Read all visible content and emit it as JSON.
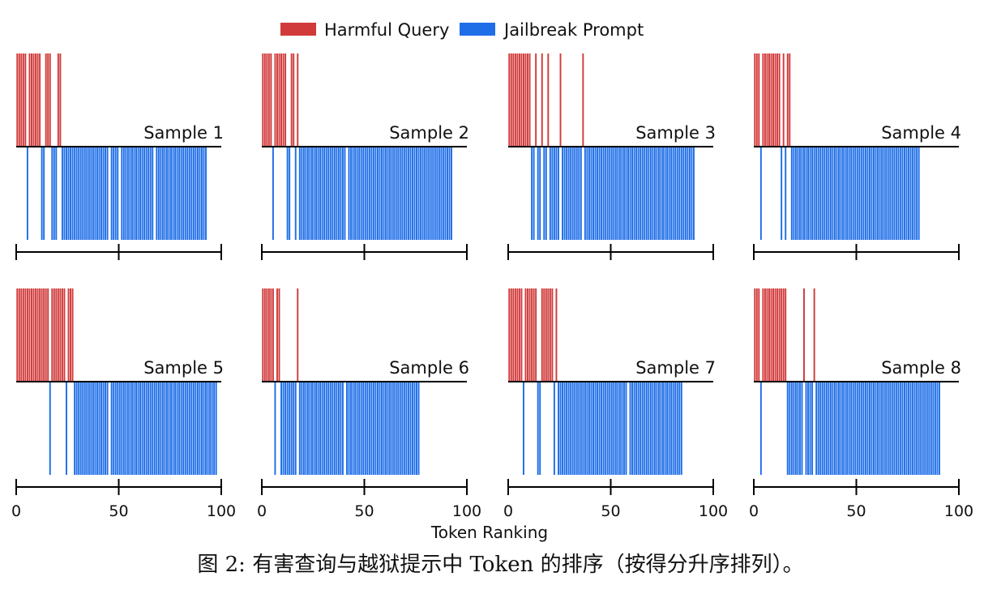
{
  "legend": {
    "harmful_label": "Harmful Query",
    "jailbreak_label": "Jailbreak Prompt"
  },
  "colors": {
    "harmful": "#d13a3a",
    "jailbreak": "#1f6ee8"
  },
  "caption": "图 2: 有害查询与越狱提示中 Token 的排序（按得分升序排列）。",
  "chart_data": {
    "type": "bar",
    "xlabel": "Token Ranking",
    "xlim": [
      0,
      100
    ],
    "xticks": [
      0,
      50,
      100
    ],
    "series_names": [
      "Harmful Query",
      "Jailbreak Prompt"
    ],
    "panels": [
      {
        "title": "Sample 1",
        "harmful_ranks": [
          1,
          2,
          3,
          4,
          5,
          7,
          8,
          9,
          10,
          11,
          12,
          15,
          16,
          17,
          21,
          22
        ],
        "jailbreak_ranks": [
          6,
          13,
          14,
          18,
          19,
          20,
          23,
          24,
          25,
          26,
          27,
          28,
          29,
          30,
          31,
          32,
          33,
          34,
          35,
          36,
          37,
          38,
          39,
          40,
          41,
          42,
          43,
          44,
          45,
          47,
          48,
          49,
          50,
          52,
          53,
          54,
          55,
          56,
          57,
          58,
          59,
          60,
          61,
          62,
          63,
          64,
          65,
          66,
          67,
          69,
          70,
          71,
          72,
          73,
          74,
          75,
          76,
          77,
          78,
          79,
          80,
          81,
          82,
          83,
          84,
          85,
          86,
          87,
          88,
          89,
          90,
          91,
          92,
          93
        ]
      },
      {
        "title": "Sample 2",
        "harmful_ranks": [
          1,
          2,
          3,
          4,
          5,
          7,
          8,
          9,
          10,
          11,
          12,
          15,
          16,
          18
        ],
        "jailbreak_ranks": [
          6,
          13,
          14,
          17,
          19,
          20,
          21,
          22,
          23,
          24,
          25,
          26,
          27,
          28,
          29,
          30,
          31,
          32,
          33,
          34,
          35,
          36,
          37,
          38,
          39,
          40,
          41,
          43,
          44,
          45,
          46,
          47,
          48,
          49,
          50,
          51,
          52,
          53,
          54,
          55,
          56,
          57,
          58,
          59,
          60,
          61,
          62,
          63,
          64,
          65,
          66,
          67,
          68,
          69,
          70,
          71,
          72,
          73,
          74,
          75,
          76,
          77,
          78,
          79,
          80,
          81,
          82,
          83,
          84,
          85,
          86,
          87,
          88,
          89,
          90,
          91,
          92,
          93
        ]
      },
      {
        "title": "Sample 3",
        "harmful_ranks": [
          1,
          2,
          3,
          4,
          5,
          6,
          7,
          8,
          9,
          10,
          11,
          14,
          17,
          20,
          26,
          37
        ],
        "jailbreak_ranks": [
          12,
          13,
          15,
          16,
          18,
          19,
          21,
          22,
          23,
          24,
          25,
          27,
          28,
          29,
          30,
          31,
          32,
          33,
          34,
          35,
          36,
          38,
          39,
          40,
          41,
          42,
          43,
          44,
          45,
          46,
          47,
          48,
          49,
          50,
          51,
          52,
          53,
          54,
          55,
          56,
          57,
          58,
          59,
          60,
          61,
          62,
          63,
          64,
          65,
          66,
          67,
          68,
          69,
          70,
          71,
          72,
          73,
          74,
          75,
          76,
          77,
          78,
          79,
          80,
          81,
          82,
          83,
          84,
          85,
          86,
          87,
          88,
          89,
          90,
          91
        ]
      },
      {
        "title": "Sample 4",
        "harmful_ranks": [
          1,
          2,
          3,
          5,
          6,
          7,
          8,
          9,
          10,
          11,
          12,
          13,
          15,
          17,
          18
        ],
        "jailbreak_ranks": [
          4,
          14,
          16,
          19,
          20,
          21,
          22,
          23,
          24,
          25,
          26,
          27,
          28,
          29,
          30,
          31,
          32,
          33,
          34,
          35,
          36,
          37,
          38,
          39,
          40,
          41,
          42,
          43,
          44,
          45,
          46,
          47,
          48,
          49,
          50,
          51,
          52,
          53,
          54,
          55,
          56,
          57,
          58,
          59,
          60,
          61,
          62,
          63,
          64,
          65,
          66,
          67,
          68,
          69,
          70,
          71,
          72,
          73,
          74,
          75,
          76,
          77,
          78,
          79,
          80,
          81
        ]
      },
      {
        "title": "Sample 5",
        "harmful_ranks": [
          1,
          2,
          3,
          4,
          5,
          6,
          7,
          8,
          9,
          10,
          11,
          12,
          13,
          14,
          15,
          16,
          18,
          19,
          20,
          21,
          22,
          23,
          24,
          26,
          27,
          28
        ],
        "jailbreak_ranks": [
          17,
          25,
          29,
          30,
          31,
          32,
          33,
          34,
          35,
          36,
          37,
          38,
          39,
          40,
          41,
          42,
          43,
          44,
          45,
          47,
          48,
          49,
          50,
          51,
          52,
          53,
          54,
          55,
          56,
          57,
          58,
          59,
          60,
          61,
          62,
          63,
          64,
          65,
          66,
          67,
          68,
          69,
          70,
          71,
          72,
          73,
          74,
          75,
          76,
          77,
          78,
          79,
          80,
          81,
          82,
          83,
          84,
          85,
          86,
          87,
          88,
          89,
          90,
          91,
          92,
          93,
          94,
          95,
          96,
          97,
          98
        ]
      },
      {
        "title": "Sample 6",
        "harmful_ranks": [
          1,
          2,
          3,
          4,
          5,
          6,
          8,
          9,
          18
        ],
        "jailbreak_ranks": [
          7,
          10,
          11,
          12,
          13,
          14,
          15,
          16,
          17,
          19,
          20,
          21,
          22,
          23,
          24,
          25,
          26,
          27,
          28,
          29,
          30,
          31,
          32,
          33,
          34,
          35,
          36,
          37,
          38,
          39,
          40,
          42,
          43,
          44,
          45,
          46,
          47,
          48,
          49,
          50,
          51,
          52,
          53,
          54,
          55,
          56,
          57,
          58,
          59,
          60,
          61,
          62,
          63,
          64,
          65,
          66,
          67,
          68,
          69,
          70,
          71,
          72,
          73,
          74,
          75,
          76,
          77
        ]
      },
      {
        "title": "Sample 7",
        "harmful_ranks": [
          1,
          2,
          3,
          4,
          5,
          6,
          7,
          9,
          10,
          11,
          12,
          13,
          14,
          17,
          18,
          19,
          20,
          21,
          22,
          24
        ],
        "jailbreak_ranks": [
          8,
          15,
          16,
          23,
          25,
          26,
          27,
          28,
          29,
          30,
          31,
          32,
          33,
          34,
          35,
          36,
          37,
          38,
          39,
          40,
          41,
          42,
          43,
          44,
          45,
          46,
          47,
          48,
          49,
          50,
          51,
          52,
          53,
          54,
          55,
          56,
          57,
          58,
          60,
          61,
          62,
          63,
          64,
          65,
          66,
          67,
          68,
          69,
          70,
          71,
          72,
          73,
          74,
          75,
          76,
          77,
          78,
          79,
          80,
          81,
          82,
          83,
          84,
          85
        ]
      },
      {
        "title": "Sample 8",
        "harmful_ranks": [
          1,
          2,
          3,
          5,
          6,
          7,
          8,
          9,
          10,
          11,
          12,
          13,
          14,
          15,
          16,
          25,
          30
        ],
        "jailbreak_ranks": [
          4,
          17,
          18,
          19,
          20,
          21,
          22,
          23,
          24,
          26,
          27,
          28,
          29,
          31,
          32,
          33,
          34,
          35,
          36,
          37,
          38,
          39,
          40,
          41,
          42,
          43,
          44,
          45,
          46,
          47,
          48,
          49,
          50,
          51,
          52,
          53,
          54,
          55,
          56,
          57,
          58,
          59,
          60,
          61,
          62,
          63,
          64,
          65,
          66,
          67,
          68,
          69,
          70,
          71,
          72,
          73,
          74,
          75,
          76,
          77,
          78,
          79,
          80,
          81,
          82,
          83,
          84,
          85,
          86,
          87,
          88,
          89,
          90,
          91
        ]
      }
    ]
  }
}
